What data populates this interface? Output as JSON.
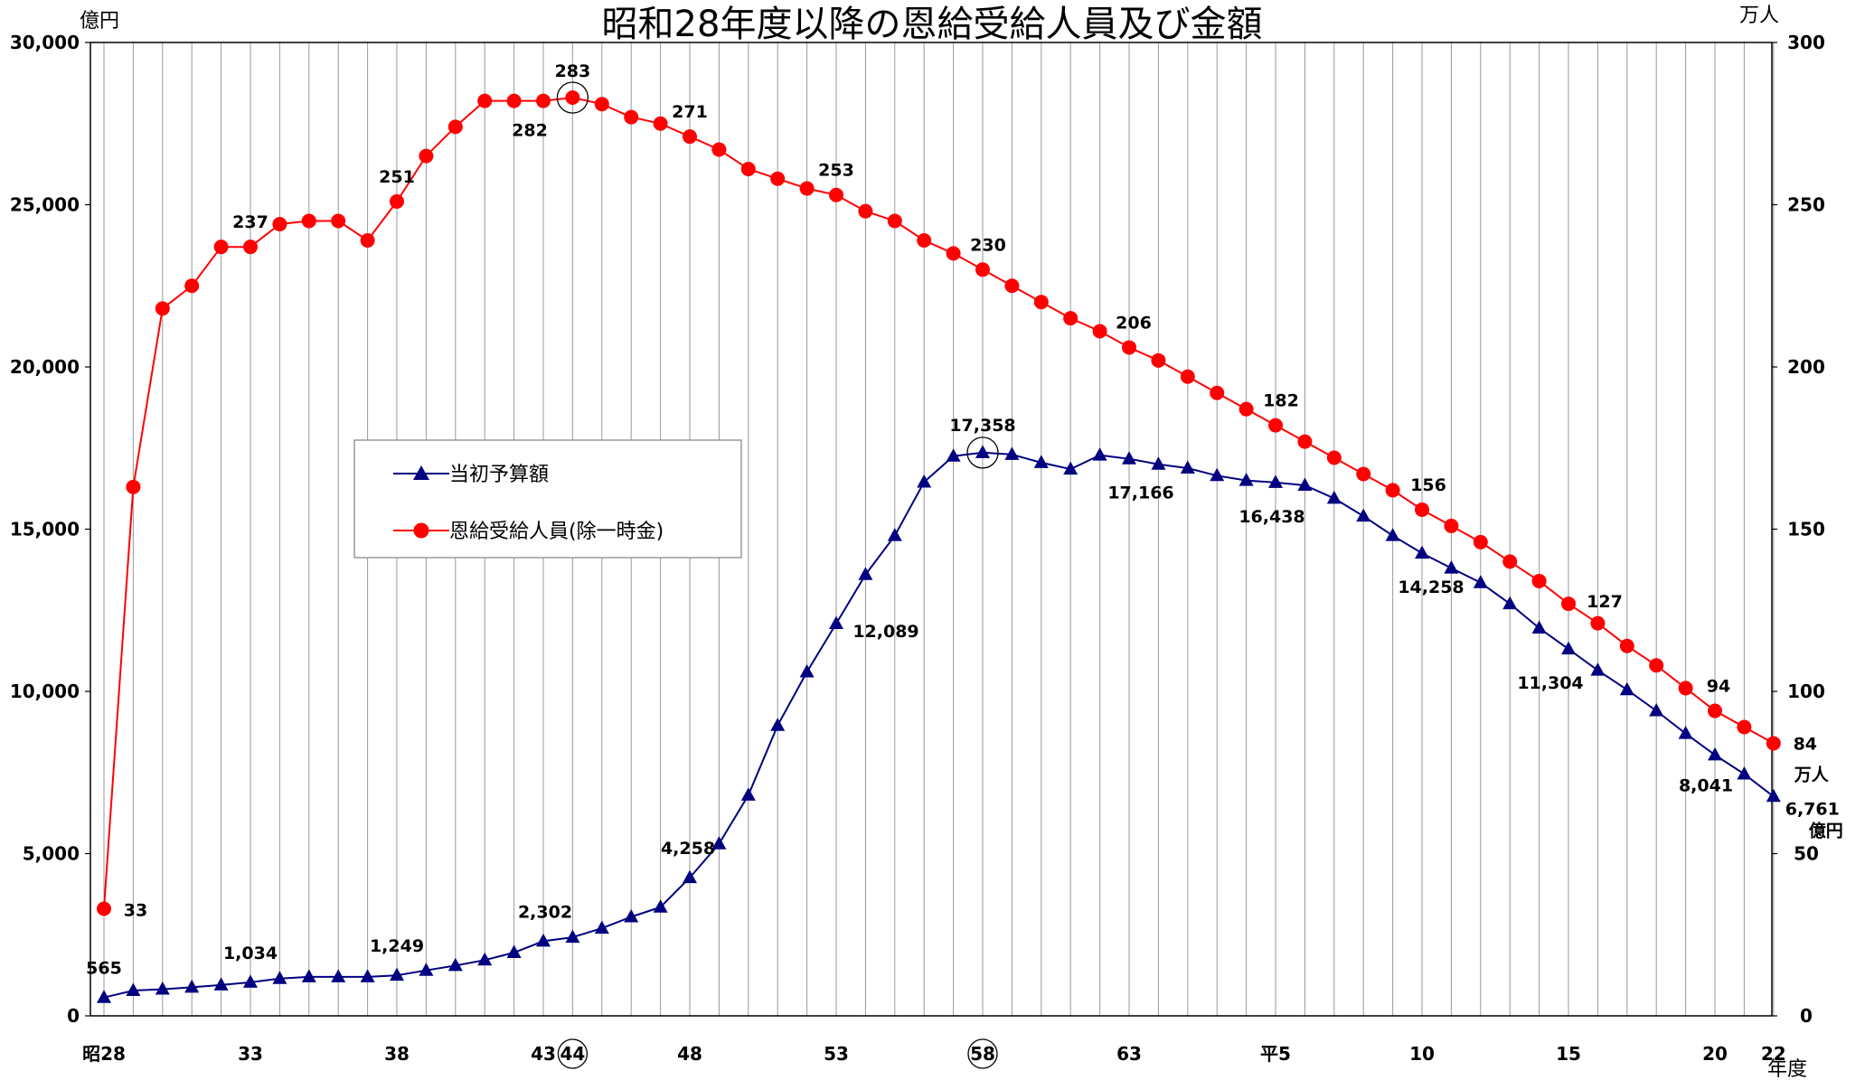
{
  "chart_data": {
    "type": "line",
    "title": "昭和28年度以降の恩給受給人員及び金額",
    "y_left_unit": "億円",
    "y_right_unit": "万人",
    "x_unit": "年度",
    "y_left_range": [
      0,
      30000
    ],
    "y_right_range": [
      0,
      300
    ],
    "y_left_ticks": [
      "0",
      "5,000",
      "10,000",
      "15,000",
      "20,000",
      "25,000",
      "30,000"
    ],
    "y_right_ticks": [
      "0",
      "50",
      "100",
      "150",
      "200",
      "250",
      "300"
    ],
    "x_tick_labels": [
      {
        "index": 0,
        "label": "昭28"
      },
      {
        "index": 5,
        "label": "33"
      },
      {
        "index": 10,
        "label": "38"
      },
      {
        "index": 15,
        "label": "43"
      },
      {
        "index": 16,
        "label": "44",
        "circled": true
      },
      {
        "index": 20,
        "label": "48"
      },
      {
        "index": 25,
        "label": "53"
      },
      {
        "index": 30,
        "label": "58",
        "circled": true
      },
      {
        "index": 35,
        "label": "63"
      },
      {
        "index": 40,
        "label": "平5"
      },
      {
        "index": 45,
        "label": "10"
      },
      {
        "index": 50,
        "label": "15"
      },
      {
        "index": 55,
        "label": "20"
      },
      {
        "index": 57,
        "label": "22"
      }
    ],
    "grid": "vertical lines at every year",
    "legend_position": "center-left",
    "series": [
      {
        "name": "当初予算額",
        "axis": "left",
        "color": "#000080",
        "marker": "triangle",
        "values": [
          565,
          780,
          820,
          880,
          950,
          1034,
          1150,
          1200,
          1200,
          1200,
          1249,
          1400,
          1550,
          1720,
          1950,
          2302,
          2420,
          2700,
          3050,
          3350,
          4258,
          5300,
          6800,
          8950,
          10600,
          12089,
          13600,
          14800,
          16450,
          17250,
          17358,
          17300,
          17050,
          16850,
          17280,
          17166,
          17000,
          16880,
          16650,
          16500,
          16438,
          16350,
          15950,
          15400,
          14800,
          14258,
          13800,
          13350,
          12700,
          11950,
          11304,
          10650,
          10050,
          9400,
          8700,
          8041,
          7450,
          6761
        ],
        "labels": [
          {
            "index": 0,
            "text": "565"
          },
          {
            "index": 5,
            "text": "1,034"
          },
          {
            "index": 10,
            "text": "1,249"
          },
          {
            "index": 15,
            "text": "2,302"
          },
          {
            "index": 20,
            "text": "4,258"
          },
          {
            "index": 25,
            "text": "12,089"
          },
          {
            "index": 30,
            "text": "17,358"
          },
          {
            "index": 35,
            "text": "17,166"
          },
          {
            "index": 40,
            "text": "16,438"
          },
          {
            "index": 45,
            "text": "14,258"
          },
          {
            "index": 50,
            "text": "11,304"
          },
          {
            "index": 55,
            "text": "8,041"
          },
          {
            "index": 57,
            "text": "6,761"
          }
        ]
      },
      {
        "name": "恩給受給人員(除一時金)",
        "axis": "right",
        "color": "#ff0000",
        "marker": "circle",
        "values": [
          33,
          163,
          218,
          225,
          237,
          237,
          244,
          245,
          245,
          239,
          251,
          265,
          274,
          282,
          282,
          282,
          283,
          281,
          277,
          275,
          271,
          267,
          261,
          258,
          255,
          253,
          248,
          245,
          239,
          235,
          230,
          225,
          220,
          215,
          211,
          206,
          202,
          197,
          192,
          187,
          182,
          177,
          172,
          167,
          162,
          156,
          151,
          146,
          140,
          134,
          127,
          121,
          114,
          108,
          101,
          94,
          89,
          84
        ],
        "labels": [
          {
            "index": 0,
            "text": "33"
          },
          {
            "index": 5,
            "text": "237"
          },
          {
            "index": 10,
            "text": "251"
          },
          {
            "index": 15,
            "text": "282"
          },
          {
            "index": 16,
            "text": "283"
          },
          {
            "index": 20,
            "text": "271"
          },
          {
            "index": 25,
            "text": "253"
          },
          {
            "index": 30,
            "text": "230"
          },
          {
            "index": 35,
            "text": "206"
          },
          {
            "index": 40,
            "text": "182"
          },
          {
            "index": 45,
            "text": "156"
          },
          {
            "index": 50,
            "text": "127"
          },
          {
            "index": 55,
            "text": "94"
          },
          {
            "index": 57,
            "text": "84"
          }
        ]
      }
    ],
    "end_units": {
      "people": "万人",
      "money": "億円"
    },
    "highlight_circles": [
      {
        "series": "恩給受給人員(除一時金)",
        "index": 16
      },
      {
        "series": "当初予算額",
        "index": 30
      }
    ]
  }
}
